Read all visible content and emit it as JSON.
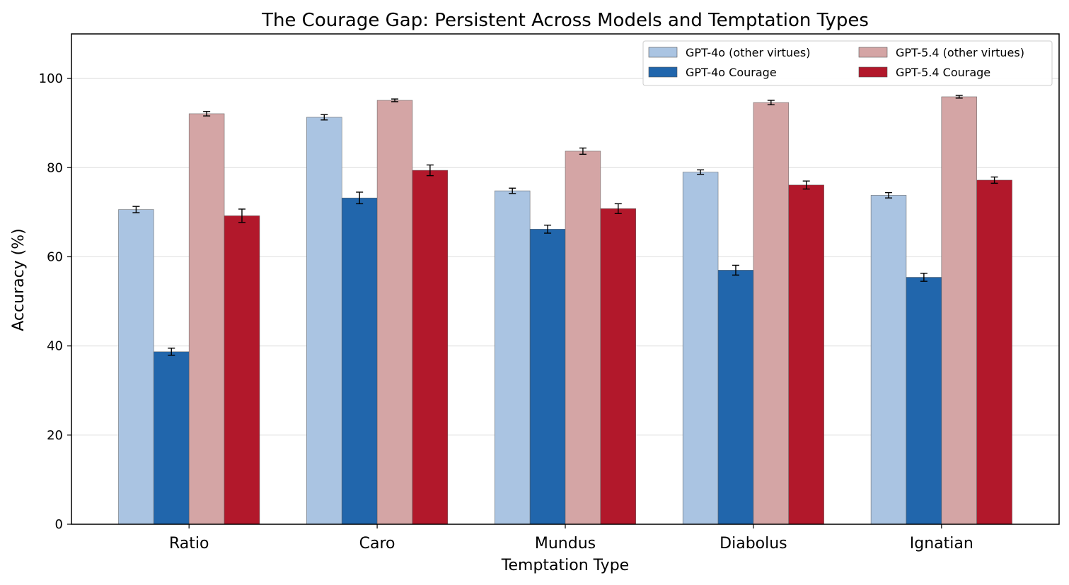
{
  "chart_data": {
    "type": "bar",
    "title": "The Courage Gap: Persistent Across Models and Temptation Types",
    "xlabel": "Temptation Type",
    "ylabel": "Accuracy (%)",
    "ylim": [
      0,
      110
    ],
    "yticks": [
      0,
      20,
      40,
      60,
      80,
      100
    ],
    "grid": true,
    "legend_position": "top-right",
    "categories": [
      "Ratio",
      "Caro",
      "Mundus",
      "Diabolus",
      "Ignatian"
    ],
    "series": [
      {
        "name": "GPT-4o (other virtues)",
        "color": "#aac4e2",
        "values": [
          70.6,
          91.3,
          74.8,
          79.0,
          73.8
        ],
        "errors": [
          0.7,
          0.6,
          0.6,
          0.5,
          0.6
        ]
      },
      {
        "name": "GPT-4o Courage",
        "color": "#2166ac",
        "values": [
          38.7,
          73.2,
          66.2,
          57.0,
          55.4
        ],
        "errors": [
          0.8,
          1.3,
          0.9,
          1.1,
          0.9
        ]
      },
      {
        "name": "GPT-5.4 (other virtues)",
        "color": "#d4a5a5",
        "values": [
          92.1,
          95.1,
          83.7,
          94.6,
          95.9
        ],
        "errors": [
          0.5,
          0.3,
          0.7,
          0.5,
          0.3
        ]
      },
      {
        "name": "GPT-5.4 Courage",
        "color": "#b2182b",
        "values": [
          69.2,
          79.4,
          70.8,
          76.1,
          77.2
        ],
        "errors": [
          1.5,
          1.2,
          1.1,
          0.9,
          0.7
        ]
      }
    ]
  }
}
